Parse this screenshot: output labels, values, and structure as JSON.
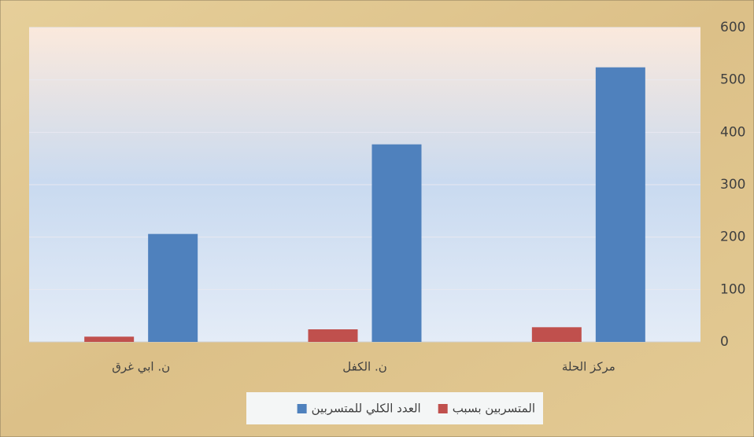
{
  "chart_data": {
    "type": "bar",
    "categories": [
      "مركز الحلة",
      "ن. الكفل",
      "ن. ابي غرق"
    ],
    "series": [
      {
        "name": "المتسربين بسبب",
        "color": "#c0504d",
        "values": [
          28,
          24,
          10
        ]
      },
      {
        "name": "العدد الكلي للمتسربين",
        "color": "#4f81bd",
        "values": [
          524,
          377,
          206
        ]
      }
    ],
    "ylim": [
      0,
      600
    ],
    "yticks": [
      0,
      100,
      200,
      300,
      400,
      500,
      600
    ],
    "grid": true,
    "axis_side": "right",
    "legend": "bottom"
  }
}
